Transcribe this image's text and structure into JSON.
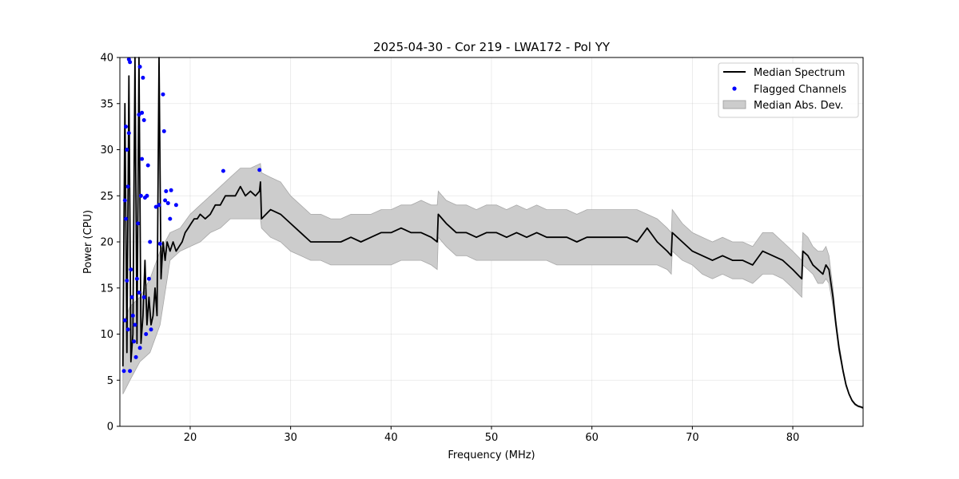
{
  "chart_data": {
    "type": "line",
    "title": "2025-04-30 - Cor 219 - LWA172 - Pol YY",
    "xlabel": "Frequency (MHz)",
    "ylabel": "Power (CPU)",
    "xlim": [
      13,
      87
    ],
    "ylim": [
      0,
      40
    ],
    "xticks": [
      20,
      30,
      40,
      50,
      60,
      70,
      80
    ],
    "yticks": [
      0,
      5,
      10,
      15,
      20,
      25,
      30,
      35,
      40
    ],
    "grid": true,
    "legend_position": "top-right",
    "legend": [
      {
        "label": "Median Spectrum",
        "kind": "line",
        "color": "#000000"
      },
      {
        "label": "Flagged Channels",
        "kind": "marker",
        "color": "#0000ff"
      },
      {
        "label": "Median Abs. Dev.",
        "kind": "patch",
        "color": "#cccccc"
      }
    ],
    "series": [
      {
        "name": "Median Spectrum",
        "type": "line",
        "color": "#000000",
        "x": [
          13.3,
          13.5,
          13.7,
          13.9,
          14.1,
          14.3,
          14.5,
          14.7,
          14.9,
          15.1,
          15.3,
          15.5,
          15.7,
          15.9,
          16.1,
          16.3,
          16.5,
          16.7,
          16.9,
          17.1,
          17.3,
          17.5,
          17.7,
          18.0,
          18.3,
          18.6,
          18.9,
          19.2,
          19.5,
          19.8,
          20.1,
          20.4,
          20.7,
          21.0,
          21.5,
          22.0,
          22.5,
          23.0,
          23.5,
          24.0,
          24.5,
          25.0,
          25.5,
          26.0,
          26.5,
          26.9,
          27.0,
          27.1,
          28.0,
          29.0,
          30.0,
          31.0,
          32.0,
          33.0,
          34.0,
          35.0,
          36.0,
          37.0,
          38.0,
          39.0,
          40.0,
          41.0,
          42.0,
          43.0,
          44.0,
          44.6,
          44.7,
          45.5,
          46.5,
          47.5,
          48.5,
          49.5,
          50.5,
          51.5,
          52.5,
          53.5,
          54.5,
          55.5,
          56.5,
          57.5,
          58.5,
          59.5,
          60.5,
          61.5,
          62.5,
          63.5,
          64.5,
          65.5,
          66.5,
          67.5,
          67.9,
          68.0,
          69.0,
          70.0,
          71.0,
          72.0,
          73.0,
          74.0,
          75.0,
          76.0,
          77.0,
          78.0,
          79.0,
          80.0,
          80.9,
          81.0,
          81.5,
          82.0,
          82.5,
          83.0,
          83.3,
          83.6,
          84.0,
          84.3,
          84.6,
          85.0,
          85.3,
          85.6,
          85.9,
          86.2,
          86.5,
          86.8,
          87.0
        ],
        "y": [
          6.5,
          35,
          8,
          38,
          7,
          10,
          40,
          9,
          40,
          9,
          12,
          18,
          11,
          14,
          11,
          12,
          15,
          12,
          40,
          16,
          20,
          18,
          20,
          19,
          20,
          19,
          19.5,
          20,
          21,
          21.5,
          22,
          22.5,
          22.5,
          23,
          22.5,
          23,
          24,
          24,
          25,
          25,
          25,
          26,
          25,
          25.5,
          25,
          25.5,
          26.5,
          22.5,
          23.5,
          23,
          22,
          21,
          20,
          20,
          20,
          20,
          20.5,
          20,
          20.5,
          21,
          21,
          21.5,
          21,
          21,
          20.5,
          20,
          23,
          22,
          21,
          21,
          20.5,
          21,
          21,
          20.5,
          21,
          20.5,
          21,
          20.5,
          20.5,
          20.5,
          20,
          20.5,
          20.5,
          20.5,
          20.5,
          20.5,
          20,
          21.5,
          20,
          19,
          18.5,
          21,
          20,
          19,
          18.5,
          18,
          18.5,
          18,
          18,
          17.5,
          19,
          18.5,
          18,
          17,
          16,
          19,
          18.5,
          17.5,
          17,
          16.5,
          17.5,
          17,
          14,
          11,
          8.5,
          6,
          4.5,
          3.5,
          2.8,
          2.4,
          2.2,
          2.1,
          2.0
        ]
      },
      {
        "name": "Median Abs. Dev.",
        "type": "band",
        "color": "#cccccc",
        "x": [
          13.3,
          14.0,
          15.0,
          16.0,
          17.0,
          18.0,
          19.0,
          20.0,
          21.0,
          22.0,
          23.0,
          24.0,
          25.0,
          26.0,
          27.0,
          27.1,
          28.0,
          29.0,
          30.0,
          31.0,
          32.0,
          33.0,
          34.0,
          35.0,
          36.0,
          37.0,
          38.0,
          39.0,
          40.0,
          41.0,
          42.0,
          43.0,
          44.0,
          44.6,
          44.7,
          45.5,
          46.5,
          47.5,
          48.5,
          49.5,
          50.5,
          51.5,
          52.5,
          53.5,
          54.5,
          55.5,
          56.5,
          57.5,
          58.5,
          59.5,
          60.5,
          61.5,
          62.5,
          63.5,
          64.5,
          65.5,
          66.5,
          67.5,
          67.9,
          68.0,
          69.0,
          70.0,
          71.0,
          72.0,
          73.0,
          74.0,
          75.0,
          76.0,
          77.0,
          78.0,
          79.0,
          80.0,
          80.9,
          81.0,
          81.5,
          82.0,
          82.5,
          83.0,
          83.3,
          83.6,
          84.0,
          84.3,
          84.6,
          85.0,
          85.3,
          85.6,
          85.9,
          86.2,
          86.5,
          86.8,
          87.0
        ],
        "lower": [
          3.5,
          5,
          7,
          8,
          11,
          18,
          19,
          19.5,
          20,
          21,
          21.5,
          22.5,
          22.5,
          22.5,
          22.5,
          21.5,
          20.5,
          20,
          19,
          18.5,
          18,
          18,
          17.5,
          17.5,
          17.5,
          17.5,
          17.5,
          17.5,
          17.5,
          18,
          18,
          18,
          17.5,
          17,
          20.5,
          19.5,
          18.5,
          18.5,
          18,
          18,
          18,
          18,
          18,
          18,
          18,
          18,
          17.5,
          17.5,
          17.5,
          17.5,
          17.5,
          17.5,
          17.5,
          17.5,
          17.5,
          17.5,
          17.5,
          17,
          16.5,
          19,
          18,
          17.5,
          16.5,
          16,
          16.5,
          16,
          16,
          15.5,
          16.5,
          16.5,
          16,
          15,
          14,
          17.5,
          17,
          16.5,
          15.5,
          15.5,
          16,
          15.5,
          13,
          10.5,
          8,
          5.8,
          4.3,
          3.4,
          2.7,
          2.3,
          2.1,
          2.0,
          1.9
        ],
        "upper": [
          11,
          13,
          14,
          16,
          19,
          21,
          21.5,
          23,
          24,
          25,
          26,
          27,
          28,
          28,
          28.5,
          27.5,
          27,
          26.5,
          25,
          24,
          23,
          23,
          22.5,
          22.5,
          23,
          23,
          23,
          23.5,
          23.5,
          24,
          24,
          24.5,
          24,
          24,
          25.5,
          24.5,
          24,
          24,
          23.5,
          24,
          24,
          23.5,
          24,
          23.5,
          24,
          23.5,
          23.5,
          23.5,
          23,
          23.5,
          23.5,
          23.5,
          23.5,
          23.5,
          23.5,
          23,
          22.5,
          21.5,
          21,
          23.5,
          22,
          21,
          20.5,
          20,
          20.5,
          20,
          20,
          19.5,
          21,
          21,
          20,
          19,
          18,
          21,
          20.5,
          19.5,
          19,
          19,
          19.5,
          18.5,
          15,
          11.5,
          9,
          6.3,
          4.7,
          3.6,
          2.9,
          2.5,
          2.2,
          2.1,
          2.0
        ]
      },
      {
        "name": "Flagged Channels",
        "type": "scatter",
        "color": "#0000ff",
        "x": [
          13.4,
          13.5,
          13.5,
          13.6,
          13.6,
          13.7,
          13.7,
          13.8,
          13.8,
          13.9,
          13.9,
          14.0,
          14.0,
          14.1,
          14.2,
          14.3,
          14.4,
          14.5,
          14.6,
          14.7,
          14.8,
          14.9,
          14.9,
          15.0,
          15.0,
          15.1,
          15.2,
          15.2,
          15.3,
          15.4,
          15.4,
          15.5,
          15.6,
          15.7,
          15.8,
          15.9,
          16.0,
          16.1,
          16.6,
          16.9,
          17.0,
          17.3,
          17.4,
          17.5,
          17.6,
          17.8,
          18.0,
          18.1,
          18.6,
          23.3,
          26.9
        ],
        "y": [
          6.0,
          11.5,
          24.5,
          22.5,
          32.5,
          30.0,
          15.8,
          26.0,
          10.5,
          31.8,
          39.8,
          39.5,
          6.0,
          17.0,
          14.0,
          12.0,
          9.2,
          11.0,
          7.5,
          16.0,
          22.0,
          14.5,
          33.8,
          8.5,
          39.0,
          25.0,
          34.0,
          29.0,
          37.8,
          33.2,
          14.0,
          24.8,
          10.0,
          25.0,
          28.3,
          16.0,
          20.0,
          10.5,
          23.8,
          24.0,
          19.8,
          36.0,
          32.0,
          24.5,
          25.5,
          24.2,
          22.5,
          25.6,
          24.0,
          27.7,
          27.8
        ]
      }
    ]
  }
}
